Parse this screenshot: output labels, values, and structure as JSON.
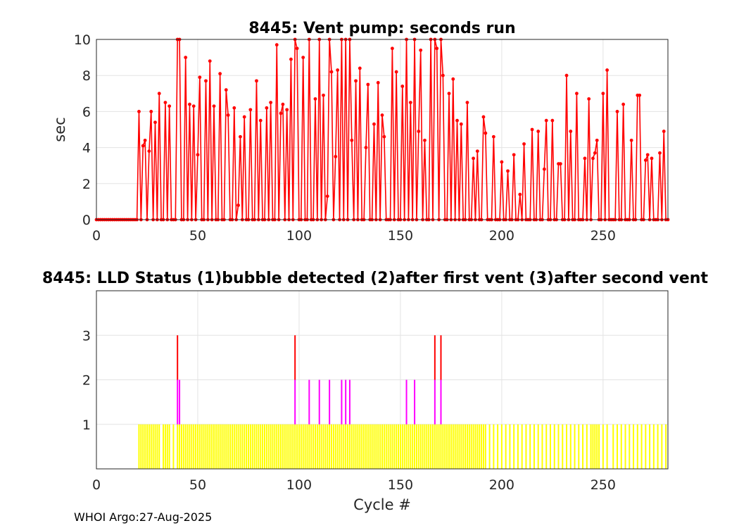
{
  "footer": "WHOI Argo:27-Aug-2025",
  "chart_data": [
    {
      "type": "line",
      "title": "8445: Vent pump: seconds run",
      "xlabel": "",
      "ylabel": "sec",
      "xlim": [
        0,
        282
      ],
      "ylim": [
        0,
        10
      ],
      "xticks": [
        "0",
        "50",
        "100",
        "150",
        "200",
        "250"
      ],
      "yticks": [
        "0",
        "2",
        "4",
        "6",
        "8",
        "10"
      ],
      "grid": true,
      "color": "#ff0000",
      "stems": [
        [
          21,
          6
        ],
        [
          23,
          4.1
        ],
        [
          24,
          4.4
        ],
        [
          26,
          3.8
        ],
        [
          27,
          6
        ],
        [
          29,
          5.4
        ],
        [
          31,
          7
        ],
        [
          34,
          6.5
        ],
        [
          36,
          6.3
        ],
        [
          40,
          10
        ],
        [
          41,
          10
        ],
        [
          44,
          9
        ],
        [
          46,
          6.4
        ],
        [
          48,
          6.3
        ],
        [
          50,
          3.6
        ],
        [
          51,
          7.9
        ],
        [
          54,
          7.7
        ],
        [
          56,
          8.8
        ],
        [
          58,
          6.3
        ],
        [
          61,
          8.1
        ],
        [
          64,
          7.2
        ],
        [
          65,
          5.8
        ],
        [
          68,
          6.2
        ],
        [
          70,
          0.8
        ],
        [
          71,
          4.6
        ],
        [
          73,
          5.7
        ],
        [
          76,
          6.1
        ],
        [
          79,
          7.7
        ],
        [
          81,
          5.5
        ],
        [
          84,
          6.2
        ],
        [
          86,
          6.5
        ],
        [
          89,
          9.7
        ],
        [
          91,
          5.9
        ],
        [
          92,
          6.4
        ],
        [
          94,
          6.1
        ],
        [
          96,
          8.9
        ],
        [
          98,
          10
        ],
        [
          99,
          9.5
        ],
        [
          102,
          9
        ],
        [
          105,
          10
        ],
        [
          108,
          6.7
        ],
        [
          110,
          10
        ],
        [
          112,
          6.9
        ],
        [
          114,
          1.3
        ],
        [
          115,
          10
        ],
        [
          116,
          8.2
        ],
        [
          118,
          3.5
        ],
        [
          119,
          8.3
        ],
        [
          121,
          10
        ],
        [
          123,
          10
        ],
        [
          125,
          10
        ],
        [
          126,
          4.4
        ],
        [
          128,
          7.7
        ],
        [
          130,
          8.4
        ],
        [
          133,
          4
        ],
        [
          134,
          7.5
        ],
        [
          137,
          5.3
        ],
        [
          139,
          7.6
        ],
        [
          141,
          5.8
        ],
        [
          142,
          4.6
        ],
        [
          146,
          9.5
        ],
        [
          148,
          8.2
        ],
        [
          151,
          7.4
        ],
        [
          153,
          10
        ],
        [
          155,
          6.5
        ],
        [
          157,
          10
        ],
        [
          159,
          4.9
        ],
        [
          160,
          9.4
        ],
        [
          162,
          4.4
        ],
        [
          165,
          10
        ],
        [
          167,
          10
        ],
        [
          168,
          9.5
        ],
        [
          170,
          10
        ],
        [
          171,
          8
        ],
        [
          174,
          7
        ],
        [
          176,
          7.8
        ],
        [
          178,
          5.5
        ],
        [
          180,
          5.3
        ],
        [
          183,
          6.5
        ],
        [
          186,
          3.4
        ],
        [
          188,
          3.8
        ],
        [
          191,
          5.7
        ],
        [
          192,
          4.8
        ],
        [
          196,
          4.6
        ],
        [
          200,
          3.2
        ],
        [
          203,
          2.7
        ],
        [
          206,
          3.6
        ],
        [
          209,
          1.4
        ],
        [
          211,
          4.2
        ],
        [
          215,
          5
        ],
        [
          218,
          4.9
        ],
        [
          221,
          2.8
        ],
        [
          222,
          5.5
        ],
        [
          225,
          5.5
        ],
        [
          228,
          3.1
        ],
        [
          229,
          3.1
        ],
        [
          232,
          8
        ],
        [
          234,
          4.9
        ],
        [
          237,
          7
        ],
        [
          241,
          3.4
        ],
        [
          243,
          6.7
        ],
        [
          245,
          3.4
        ],
        [
          246,
          3.7
        ],
        [
          247,
          4.4
        ],
        [
          250,
          7
        ],
        [
          252,
          8.3
        ],
        [
          257,
          6
        ],
        [
          260,
          6.4
        ],
        [
          264,
          4.4
        ],
        [
          267,
          6.9
        ],
        [
          268,
          6.9
        ],
        [
          271,
          3.3
        ],
        [
          272,
          3.6
        ],
        [
          274,
          3.4
        ],
        [
          278,
          3.7
        ],
        [
          280,
          4.9
        ]
      ]
    },
    {
      "type": "bar",
      "title": "8445: LLD Status   (1)bubble detected   (2)after first vent  (3)after second vent",
      "xlabel": "Cycle #",
      "ylabel": "",
      "xlim": [
        0,
        282
      ],
      "ylim": [
        0,
        4
      ],
      "xticks": [
        "0",
        "50",
        "100",
        "150",
        "200",
        "250"
      ],
      "yticks": [
        "1",
        "2",
        "3"
      ],
      "grid": true,
      "colors": {
        "1": "#ffff00",
        "2": "#ff00ff",
        "3": "#ff0000"
      },
      "yellow_bars": [
        21,
        22,
        23,
        24,
        25,
        26,
        27,
        28,
        29,
        30,
        31,
        33,
        34,
        35,
        36,
        38,
        40,
        41,
        42,
        43,
        44,
        45,
        46,
        47,
        48,
        49,
        50,
        51,
        52,
        53,
        54,
        55,
        56,
        57,
        58,
        59,
        60,
        61,
        62,
        63,
        64,
        65,
        66,
        67,
        68,
        69,
        70,
        71,
        72,
        73,
        74,
        75,
        76,
        77,
        78,
        79,
        80,
        81,
        82,
        83,
        84,
        85,
        86,
        87,
        88,
        89,
        90,
        91,
        92,
        93,
        94,
        95,
        96,
        97,
        98,
        99,
        100,
        101,
        102,
        103,
        104,
        105,
        106,
        107,
        108,
        109,
        110,
        111,
        112,
        113,
        114,
        115,
        116,
        117,
        118,
        119,
        120,
        121,
        122,
        123,
        124,
        125,
        126,
        127,
        128,
        129,
        130,
        131,
        132,
        133,
        134,
        135,
        136,
        137,
        138,
        139,
        140,
        141,
        142,
        143,
        144,
        145,
        146,
        147,
        148,
        149,
        150,
        151,
        152,
        153,
        154,
        155,
        156,
        157,
        158,
        159,
        160,
        161,
        162,
        163,
        164,
        165,
        166,
        167,
        168,
        169,
        170,
        171,
        172,
        173,
        174,
        175,
        176,
        177,
        178,
        179,
        180,
        181,
        182,
        183,
        184,
        185,
        186,
        187,
        188,
        189,
        190,
        191,
        192,
        194,
        196,
        198,
        200,
        202,
        204,
        206,
        208,
        210,
        212,
        214,
        216,
        218,
        220,
        222,
        224,
        226,
        228,
        230,
        232,
        234,
        236,
        238,
        240,
        242,
        244,
        245,
        246,
        247,
        248,
        250,
        252,
        255,
        257,
        259,
        261,
        263,
        265,
        267,
        269,
        271,
        273,
        275,
        277,
        279,
        281
      ],
      "magenta_bars": [
        40,
        41,
        98,
        105,
        110,
        115,
        121,
        123,
        125,
        153,
        157,
        167,
        170
      ],
      "red_bars": [
        40,
        98,
        167,
        170
      ]
    }
  ]
}
